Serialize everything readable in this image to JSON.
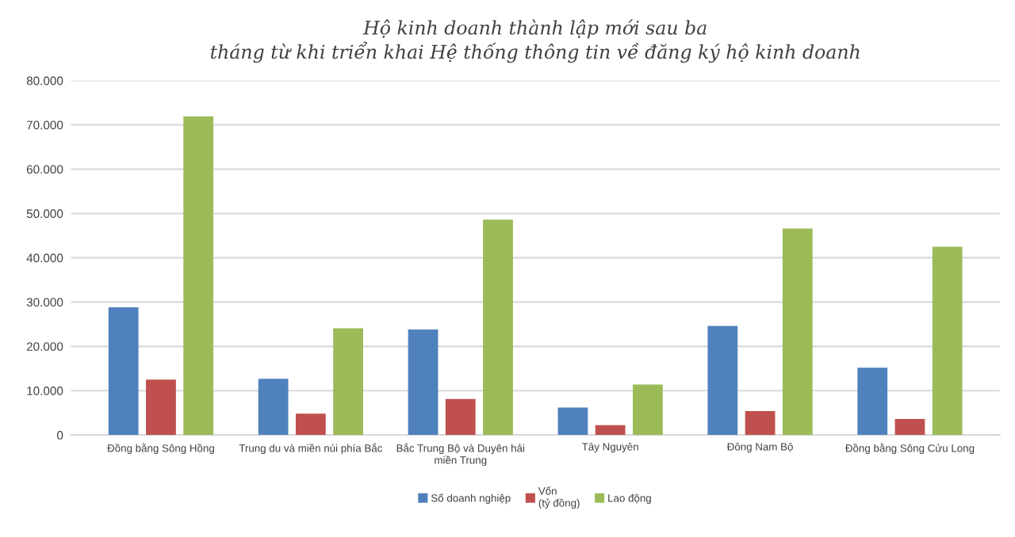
{
  "chart_data": {
    "type": "bar",
    "title": "Hộ kinh doanh thành lập mới sau ba\ntháng từ khi triển khai Hệ thống thông tin về đăng ký hộ kinh doanh",
    "categories": [
      "Đồng bằng Sông Hồng",
      "Trung du và miền núi phía Bắc",
      "Bắc Trung Bộ và Duyên hải\nmiền Trung",
      "Tây Nguyên",
      "Đông Nam Bộ",
      "Đồng bằng Sông Cửu Long"
    ],
    "series": [
      {
        "name": "Số doanh nghiệp",
        "color": "#4f81bd",
        "values": [
          28800,
          12700,
          23800,
          6200,
          24600,
          15200
        ]
      },
      {
        "name": "Vốn\n(tỷ đồng)",
        "color": "#c0504d",
        "values": [
          12500,
          4800,
          8100,
          2200,
          5400,
          3600
        ]
      },
      {
        "name": "Lao động",
        "color": "#9bbb59",
        "values": [
          71900,
          24100,
          48600,
          11400,
          46600,
          42500
        ]
      }
    ],
    "ylim": [
      0,
      80000
    ],
    "yticks": [
      0,
      {
        "value": 10000,
        "label": "10.000"
      },
      {
        "value": 20000,
        "label": "20.000"
      },
      {
        "value": 30000,
        "label": "30.000"
      },
      {
        "value": 40000,
        "label": "40.000"
      },
      {
        "value": 50000,
        "label": "50.000"
      },
      {
        "value": 60000,
        "label": "60.000"
      },
      {
        "value": 70000,
        "label": "70.000"
      },
      {
        "value": 80000,
        "label": "80.000"
      }
    ],
    "grid": "y",
    "legend": "bottom"
  }
}
